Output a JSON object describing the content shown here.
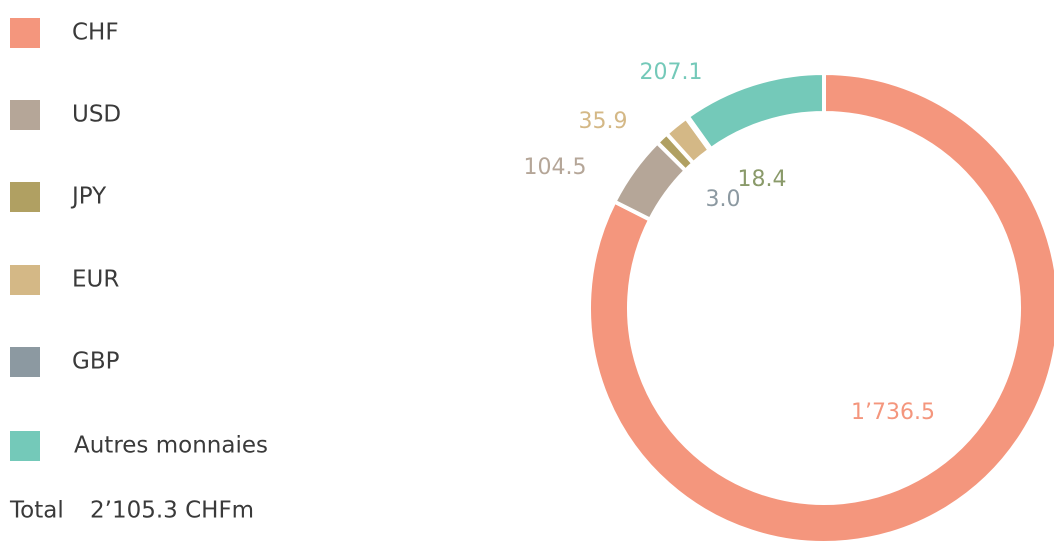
{
  "chart_data": {
    "type": "donut",
    "categories": [
      "CHF",
      "USD",
      "JPY",
      "EUR",
      "GBP",
      "Autres monnaies"
    ],
    "values": [
      1736.5,
      104.5,
      18.4,
      35.9,
      3.0,
      207.1
    ],
    "value_labels": [
      "1’736.5",
      "104.5",
      "18.4",
      "35.9",
      "3.0",
      "207.1"
    ],
    "colors": [
      "#f4967d",
      "#b5a698",
      "#b0a062",
      "#d4b886",
      "#8c99a1",
      "#74c9b9"
    ],
    "total_label": "Total",
    "total_value": "2’105.3 CHFm"
  }
}
